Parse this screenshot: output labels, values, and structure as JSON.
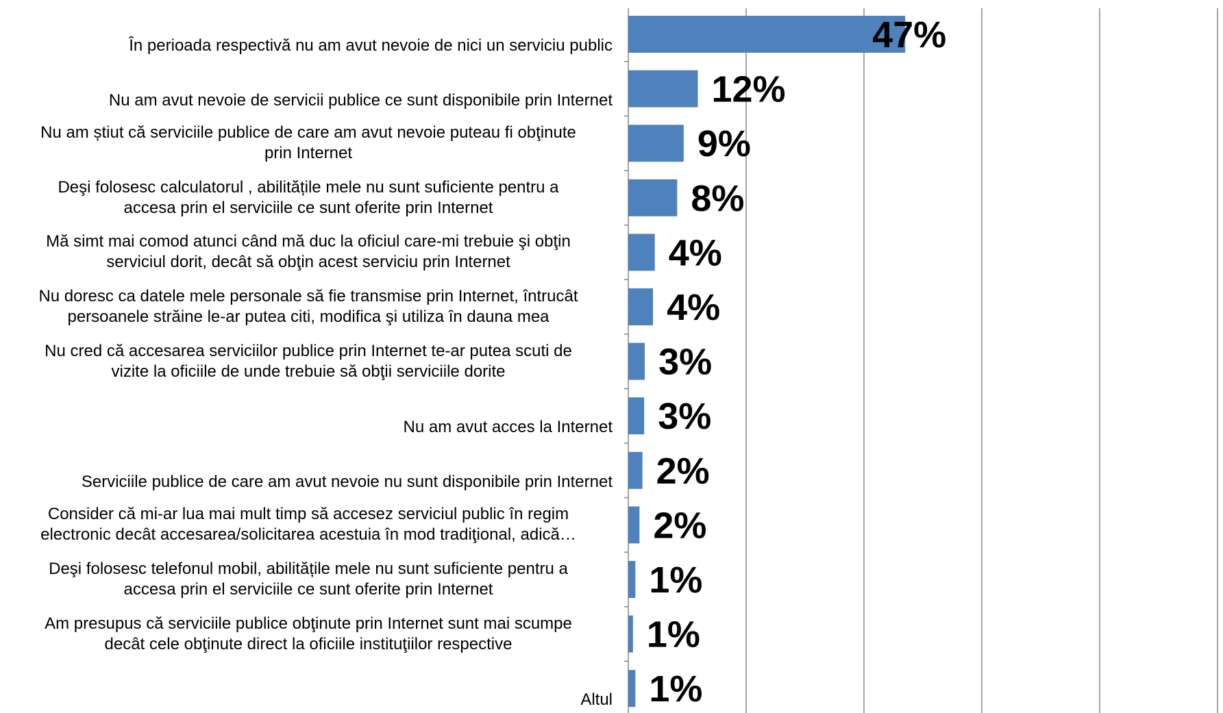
{
  "chart_data": {
    "type": "bar",
    "orientation": "horizontal",
    "title": "",
    "xlabel": "",
    "ylabel": "",
    "xlim": [
      0,
      50
    ],
    "grid": "vertical",
    "legend": "none",
    "bar_color": "#4F81BD",
    "label_color": "#000000",
    "categories": [
      "În perioada respectivă nu am avut nevoie de nici un serviciu public",
      "Nu am avut nevoie de servicii publice ce sunt disponibile prin Internet",
      "Nu am știut că serviciile publice de care am avut nevoie puteau fi obţinute prin Internet",
      "Deşi folosesc calculatorul , abilitățile mele nu sunt suficiente pentru a accesa prin el serviciile ce sunt oferite prin Internet",
      "Mă simt mai comod atunci când mă duc la oficiul care-mi trebuie şi obţin serviciul dorit, decât să obţin acest serviciu  prin Internet",
      "Nu doresc ca datele mele personale să fie transmise prin Internet, întrucât persoanele străine le-ar putea citi, modifica şi utiliza în dauna mea",
      "Nu cred că accesarea serviciilor publice prin Internet te-ar putea scuti de vizite la oficiile de unde trebuie să obţii serviciile dorite",
      "Nu am avut acces la Internet",
      "Serviciile publice de care am avut nevoie nu sunt disponibile prin Internet",
      "Consider că mi-ar lua mai mult timp să accesez serviciul public în regim electronic decât accesarea/solicitarea acestuia în mod tradiţional, adică…",
      "Deşi folosesc telefonul mobil, abilitățile mele nu sunt suficiente pentru a accesa prin el serviciile ce sunt oferite prin Internet",
      "Am presupus că serviciile publice obţinute prin Internet sunt mai scumpe decât cele obţinute direct  la oficiile instituţiilor respective",
      "Altul"
    ],
    "label_lines": [
      [
        "În perioada respectivă nu am avut nevoie de nici un serviciu public"
      ],
      [
        "Nu am avut nevoie de servicii publice ce sunt disponibile prin Internet"
      ],
      [
        "Nu am știut că serviciile publice de care am avut nevoie puteau fi obţinute",
        "prin Internet"
      ],
      [
        "Deşi folosesc calculatorul , abilitățile mele nu sunt suficiente pentru a",
        "accesa prin el serviciile ce sunt oferite prin Internet"
      ],
      [
        "Mă simt mai comod atunci când mă duc la oficiul care-mi trebuie şi obţin",
        "serviciul dorit, decât să obţin acest serviciu  prin Internet"
      ],
      [
        "Nu doresc ca datele mele personale să fie transmise prin Internet, întrucât",
        "persoanele străine le-ar putea citi, modifica şi utiliza în dauna mea"
      ],
      [
        "Nu cred că accesarea serviciilor publice prin Internet te-ar putea scuti de",
        "vizite la oficiile de unde trebuie să obţii serviciile dorite"
      ],
      [
        "Nu am avut acces la Internet"
      ],
      [
        "Serviciile publice de care am avut nevoie nu sunt disponibile prin Internet"
      ],
      [
        "Consider că mi-ar lua mai mult timp să accesez serviciul public în regim",
        "electronic decât accesarea/solicitarea acestuia în mod tradiţional, adică…"
      ],
      [
        "Deşi folosesc telefonul mobil, abilitățile mele nu sunt suficiente pentru a",
        "accesa prin el serviciile ce sunt oferite prin Internet"
      ],
      [
        "Am presupus că serviciile publice obţinute prin Internet sunt mai scumpe",
        "decât cele obţinute direct  la oficiile instituţiilor respective"
      ],
      [
        "Altul"
      ]
    ],
    "values": [
      47,
      11.8,
      9.4,
      8.3,
      4.5,
      4.2,
      2.8,
      2.7,
      2.4,
      1.9,
      1.2,
      0.8,
      1.2
    ],
    "data_labels": [
      "47%",
      "12%",
      "9%",
      "8%",
      "4%",
      "4%",
      "3%",
      "3%",
      "2%",
      "2%",
      "1%",
      "1%",
      "1%"
    ]
  }
}
